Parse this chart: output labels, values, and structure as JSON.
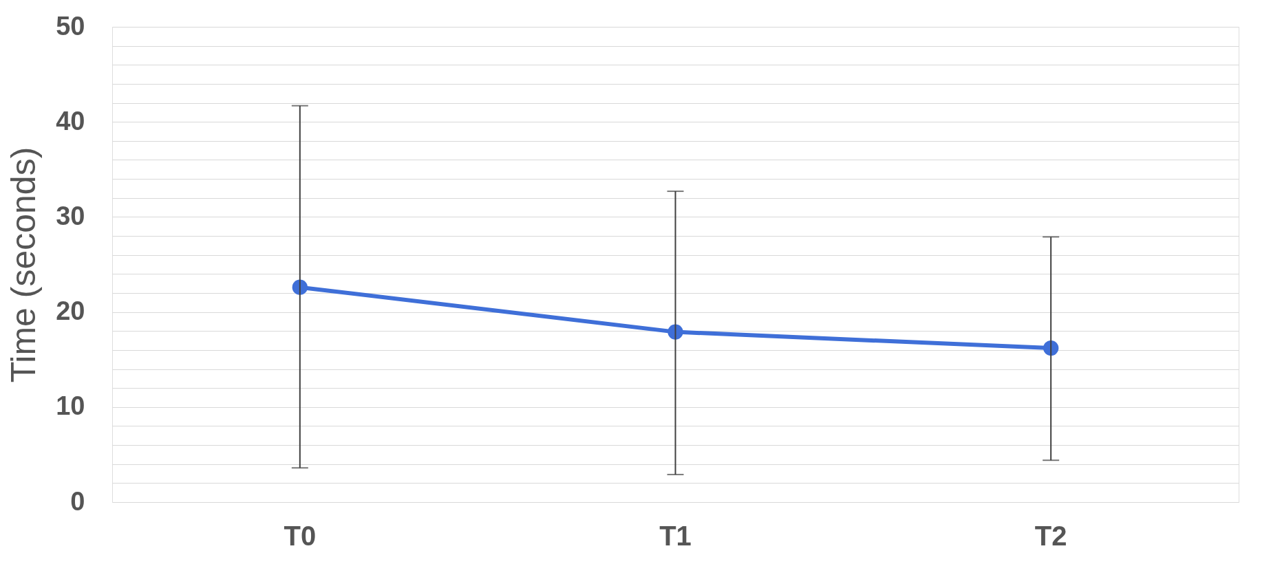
{
  "chart_data": {
    "type": "line",
    "ylabel": "Time (seconds)",
    "categories": [
      "T0",
      "T1",
      "T2"
    ],
    "series": [
      {
        "color": "#3f6fd8",
        "values": [
          22.6,
          17.9,
          16.2
        ],
        "errors": [
          [
            3.6,
            41.7
          ],
          [
            2.9,
            32.7
          ],
          [
            4.4,
            27.9
          ]
        ]
      }
    ],
    "ylim": [
      0,
      50
    ],
    "yticks": [
      0,
      {
        "value": 2,
        "label": null
      },
      {
        "value": 4,
        "label": null
      },
      {
        "value": 6,
        "label": null
      },
      {
        "value": 8,
        "label": null
      },
      10,
      {
        "value": 12,
        "label": null
      },
      {
        "value": 14,
        "label": null
      },
      {
        "value": 16,
        "label": null
      },
      {
        "value": 18,
        "label": null
      },
      20,
      {
        "value": 22,
        "label": null
      },
      {
        "value": 24,
        "label": null
      },
      {
        "value": 26,
        "label": null
      },
      {
        "value": 28,
        "label": null
      },
      30,
      {
        "value": 32,
        "label": null
      },
      {
        "value": 34,
        "label": null
      },
      {
        "value": 36,
        "label": null
      },
      {
        "value": 38,
        "label": null
      },
      40,
      {
        "value": 42,
        "label": null
      },
      {
        "value": 44,
        "label": null
      },
      {
        "value": 46,
        "label": null
      },
      {
        "value": 48,
        "label": null
      },
      50
    ],
    "grid": "y",
    "marker": "circle",
    "line_style": "solid",
    "legend": false
  }
}
